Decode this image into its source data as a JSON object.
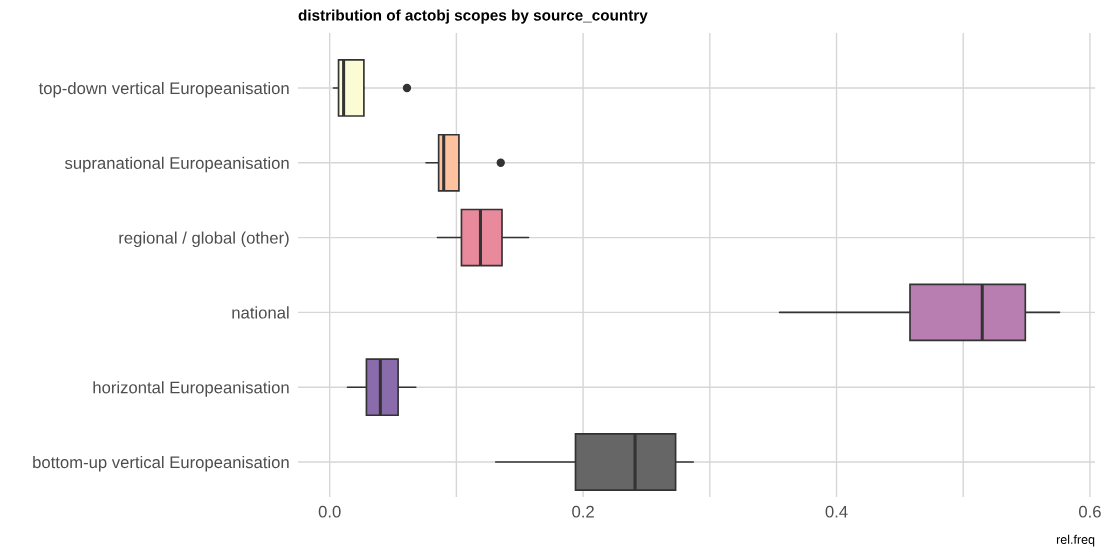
{
  "chart_data": {
    "type": "box",
    "orientation": "horizontal",
    "title": "distribution of actobj scopes by source_country",
    "xlabel": "rel.freq",
    "categories": [
      "top-down vertical Europeanisation",
      "supranational Europeanisation",
      "regional / global (other)",
      "national",
      "horizontal Europeanisation",
      "bottom-up vertical Europeanisation"
    ],
    "boxes": [
      {
        "low": 0.003,
        "q1": 0.007,
        "median": 0.011,
        "q3": 0.027,
        "high": 0.027,
        "outliers": [
          0.061
        ]
      },
      {
        "low": 0.076,
        "q1": 0.086,
        "median": 0.09,
        "q3": 0.102,
        "high": 0.102,
        "outliers": [
          0.135
        ]
      },
      {
        "low": 0.085,
        "q1": 0.104,
        "median": 0.119,
        "q3": 0.136,
        "high": 0.157
      },
      {
        "low": 0.355,
        "q1": 0.458,
        "median": 0.515,
        "q3": 0.549,
        "high": 0.576
      },
      {
        "low": 0.014,
        "q1": 0.029,
        "median": 0.04,
        "q3": 0.054,
        "high": 0.068
      },
      {
        "low": 0.131,
        "q1": 0.194,
        "median": 0.241,
        "q3": 0.273,
        "high": 0.287
      }
    ],
    "colors": [
      "#fcfcd4",
      "#fec29e",
      "#e98a9c",
      "#b97eb1",
      "#8a6bab",
      "#666666"
    ],
    "xlim": [
      -0.025,
      0.604
    ],
    "xticks": [
      {
        "value": 0,
        "label": "0.0"
      },
      {
        "value": 0.1,
        "label": null
      },
      {
        "value": 0.2,
        "label": "0.2"
      },
      {
        "value": 0.3,
        "label": null
      },
      {
        "value": 0.4,
        "label": "0.4"
      },
      {
        "value": 0.5,
        "label": null
      },
      {
        "value": 0.6,
        "label": "0.6"
      }
    ],
    "grid": true,
    "legend": false
  }
}
